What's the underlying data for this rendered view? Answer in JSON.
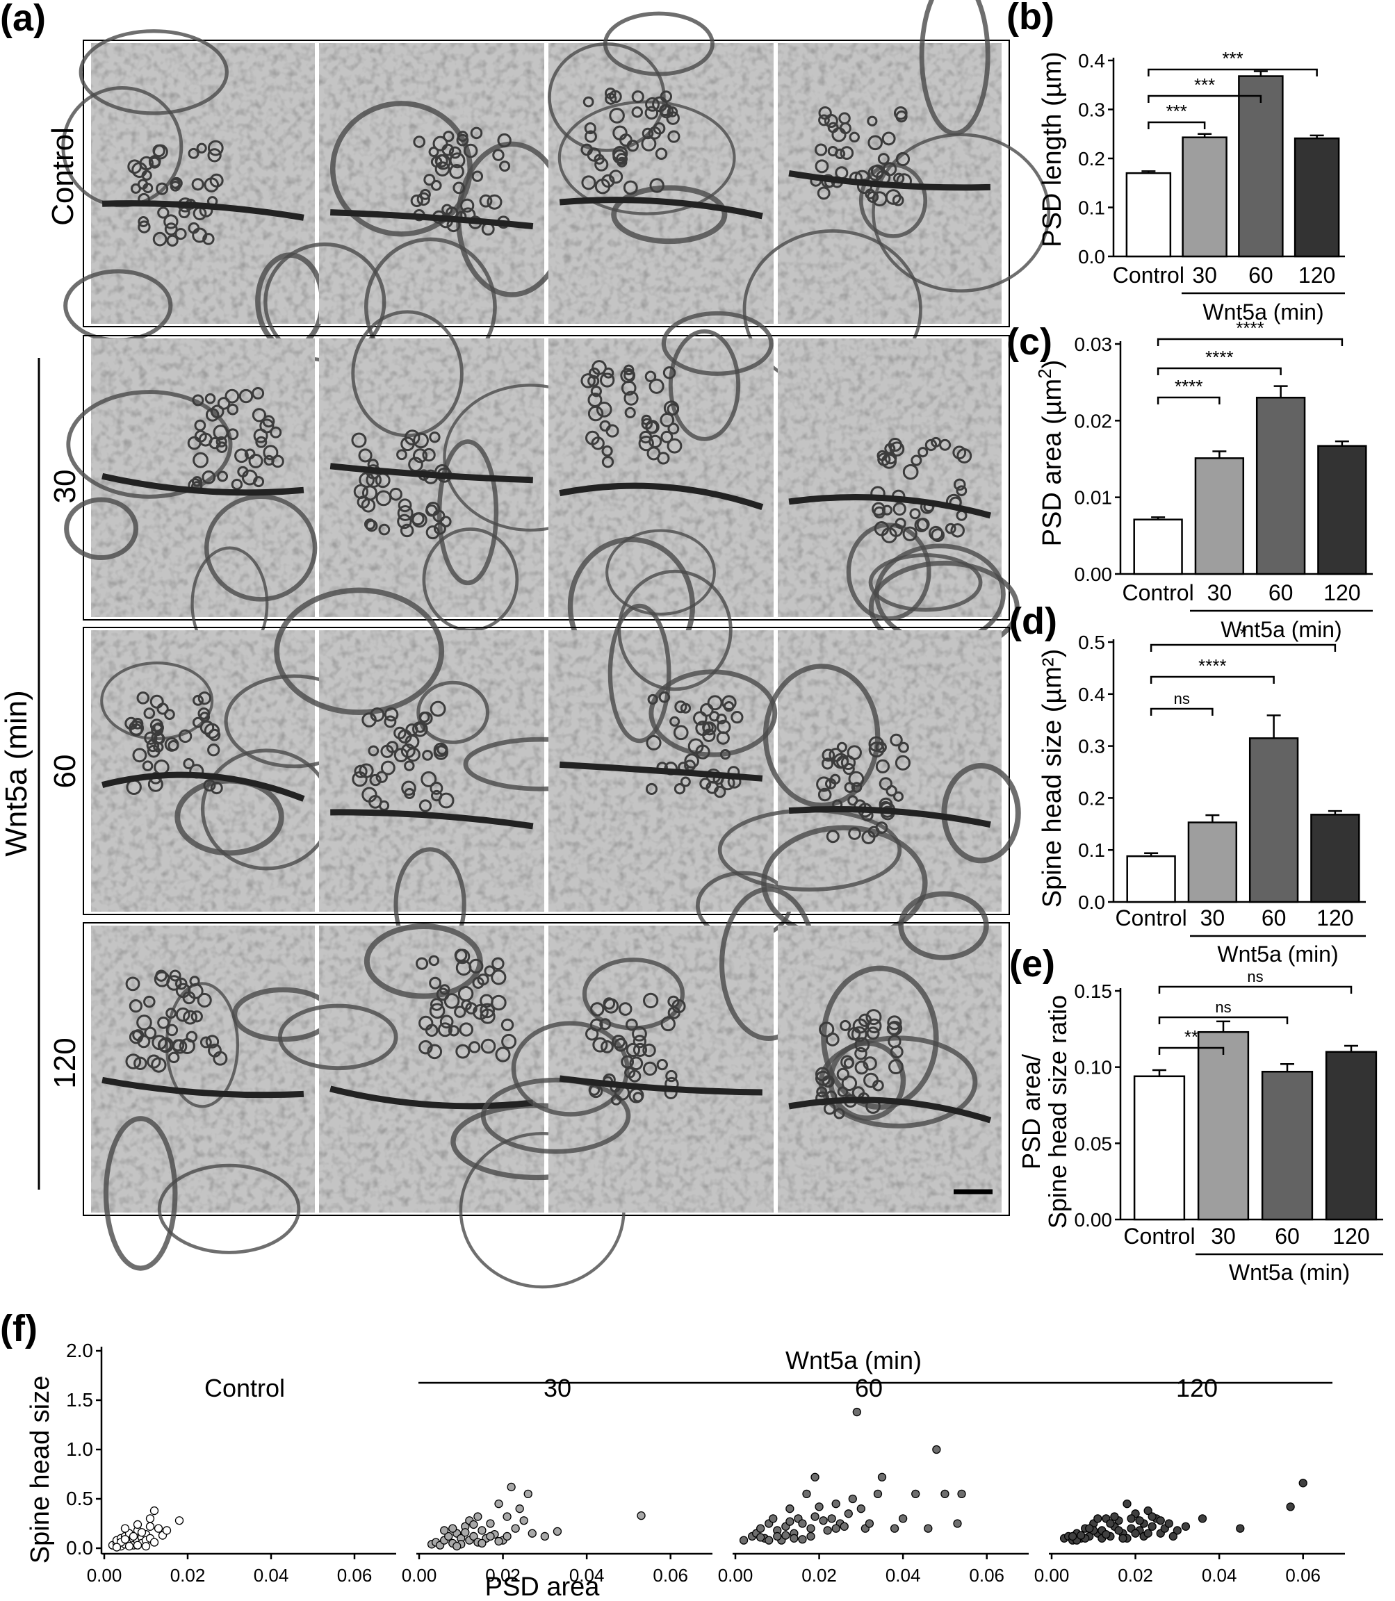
{
  "panels": {
    "a": "(a)",
    "b": "(b)",
    "c": "(c)",
    "d": "(d)",
    "e": "(e)",
    "f": "(f)"
  },
  "em": {
    "row_labels": [
      "Control",
      "30",
      "60",
      "120"
    ],
    "group_label": "Wnt5a (min)"
  },
  "chart_data": [
    {
      "id": "b",
      "type": "bar",
      "categories": [
        "Control",
        "30",
        "60",
        "120"
      ],
      "values": [
        0.17,
        0.243,
        0.368,
        0.241
      ],
      "errors": [
        0.004,
        0.007,
        0.01,
        0.006
      ],
      "ylabel": "PSD length (µm)",
      "ylim": [
        0,
        0.4
      ],
      "yticks": [
        0.0,
        0.1,
        0.2,
        0.3,
        0.4
      ],
      "ytick_labels": [
        "0.0",
        "0.1",
        "0.2",
        "0.3",
        "0.4"
      ],
      "group_label": "Wnt5a (min)",
      "colors": [
        "#ffffff",
        "#9e9e9e",
        "#636363",
        "#333333"
      ],
      "significance": [
        {
          "from": 0,
          "to": 1,
          "label": "***"
        },
        {
          "from": 0,
          "to": 2,
          "label": "***"
        },
        {
          "from": 0,
          "to": 3,
          "label": "***"
        }
      ]
    },
    {
      "id": "c",
      "type": "bar",
      "categories": [
        "Control",
        "30",
        "60",
        "120"
      ],
      "values": [
        0.0071,
        0.0151,
        0.023,
        0.0167
      ],
      "errors": [
        0.0003,
        0.0009,
        0.0015,
        0.0006
      ],
      "ylabel_parts": [
        "PSD area (µm",
        "2",
        ")"
      ],
      "ylim": [
        0,
        0.03
      ],
      "yticks": [
        0.0,
        0.01,
        0.02,
        0.03
      ],
      "ytick_labels": [
        "0.00",
        "0.01",
        "0.02",
        "0.03"
      ],
      "group_label": "Wnt5a (min)",
      "colors": [
        "#ffffff",
        "#9e9e9e",
        "#636363",
        "#333333"
      ],
      "significance": [
        {
          "from": 0,
          "to": 1,
          "label": "****"
        },
        {
          "from": 0,
          "to": 2,
          "label": "****"
        },
        {
          "from": 0,
          "to": 3,
          "label": "****"
        }
      ]
    },
    {
      "id": "d",
      "type": "bar",
      "categories": [
        "Control",
        "30",
        "60",
        "120"
      ],
      "values": [
        0.088,
        0.153,
        0.315,
        0.168
      ],
      "errors": [
        0.006,
        0.014,
        0.044,
        0.007
      ],
      "ylabel": "Spine head size (µm²)",
      "ylim": [
        0,
        0.5
      ],
      "yticks": [
        0.0,
        0.1,
        0.2,
        0.3,
        0.4,
        0.5
      ],
      "ytick_labels": [
        "0.0",
        "0.1",
        "0.2",
        "0.3",
        "0.4",
        "0.5"
      ],
      "group_label": "Wnt5a (min)",
      "colors": [
        "#ffffff",
        "#9e9e9e",
        "#636363",
        "#333333"
      ],
      "significance": [
        {
          "from": 0,
          "to": 1,
          "label": "ns"
        },
        {
          "from": 0,
          "to": 2,
          "label": "****"
        },
        {
          "from": 0,
          "to": 3,
          "label": "*"
        }
      ]
    },
    {
      "id": "e",
      "type": "bar",
      "categories": [
        "Control",
        "30",
        "60",
        "120"
      ],
      "values": [
        0.094,
        0.123,
        0.097,
        0.11
      ],
      "errors": [
        0.004,
        0.007,
        0.005,
        0.004
      ],
      "ylabel_lines": [
        "PSD area/",
        "Spine head size ratio"
      ],
      "ylim": [
        0,
        0.15
      ],
      "yticks": [
        0.0,
        0.05,
        0.1,
        0.15
      ],
      "ytick_labels": [
        "0.00",
        "0.05",
        "0.10",
        "0.15"
      ],
      "group_label": "Wnt5a (min)",
      "colors": [
        "#ffffff",
        "#9e9e9e",
        "#636363",
        "#333333"
      ],
      "significance": [
        {
          "from": 0,
          "to": 1,
          "label": "**"
        },
        {
          "from": 0,
          "to": 2,
          "label": "ns"
        },
        {
          "from": 0,
          "to": 3,
          "label": "ns"
        }
      ]
    },
    {
      "id": "f",
      "type": "scatter",
      "title": "Wnt5a (min)",
      "xlabel": "PSD area",
      "ylabel": "Spine head size",
      "xlim": [
        0,
        0.07
      ],
      "ylim": [
        0,
        2.0
      ],
      "xticks": [
        0.0,
        0.02,
        0.04,
        0.06
      ],
      "xtick_labels": [
        "0.00",
        "0.02",
        "0.04",
        "0.06"
      ],
      "yticks": [
        0.0,
        0.5,
        1.0,
        1.5,
        2.0
      ],
      "ytick_labels": [
        "0.0",
        "0.5",
        "1.0",
        "1.5",
        "2.0"
      ],
      "series": [
        {
          "name": "Control",
          "color": "#ffffff",
          "points": [
            [
              0.002,
              0.03
            ],
            [
              0.003,
              0.05
            ],
            [
              0.003,
              0.08
            ],
            [
              0.004,
              0.02
            ],
            [
              0.004,
              0.1
            ],
            [
              0.005,
              0.04
            ],
            [
              0.005,
              0.12
            ],
            [
              0.006,
              0.06
            ],
            [
              0.006,
              0.15
            ],
            [
              0.007,
              0.09
            ],
            [
              0.007,
              0.03
            ],
            [
              0.008,
              0.18
            ],
            [
              0.008,
              0.07
            ],
            [
              0.009,
              0.11
            ],
            [
              0.009,
              0.05
            ],
            [
              0.01,
              0.14
            ],
            [
              0.01,
              0.08
            ],
            [
              0.011,
              0.22
            ],
            [
              0.011,
              0.1
            ],
            [
              0.012,
              0.38
            ],
            [
              0.012,
              0.06
            ],
            [
              0.013,
              0.2
            ],
            [
              0.014,
              0.13
            ],
            [
              0.015,
              0.18
            ],
            [
              0.018,
              0.28
            ],
            [
              0.005,
              0.2
            ],
            [
              0.007,
              0.12
            ],
            [
              0.009,
              0.16
            ],
            [
              0.004,
              0.06
            ],
            [
              0.006,
              0.02
            ],
            [
              0.008,
              0.03
            ],
            [
              0.01,
              0.02
            ],
            [
              0.003,
              0.01
            ],
            [
              0.005,
              0.09
            ],
            [
              0.008,
              0.24
            ],
            [
              0.011,
              0.3
            ]
          ]
        },
        {
          "name": "30",
          "color": "#a8a8a8",
          "points": [
            [
              0.003,
              0.04
            ],
            [
              0.004,
              0.06
            ],
            [
              0.005,
              0.03
            ],
            [
              0.006,
              0.08
            ],
            [
              0.007,
              0.12
            ],
            [
              0.008,
              0.05
            ],
            [
              0.009,
              0.15
            ],
            [
              0.01,
              0.1
            ],
            [
              0.011,
              0.22
            ],
            [
              0.012,
              0.28
            ],
            [
              0.012,
              0.08
            ],
            [
              0.013,
              0.12
            ],
            [
              0.014,
              0.06
            ],
            [
              0.015,
              0.18
            ],
            [
              0.016,
              0.1
            ],
            [
              0.017,
              0.25
            ],
            [
              0.018,
              0.14
            ],
            [
              0.019,
              0.45
            ],
            [
              0.02,
              0.08
            ],
            [
              0.021,
              0.32
            ],
            [
              0.022,
              0.62
            ],
            [
              0.023,
              0.2
            ],
            [
              0.024,
              0.4
            ],
            [
              0.025,
              0.28
            ],
            [
              0.026,
              0.55
            ],
            [
              0.027,
              0.15
            ],
            [
              0.03,
              0.12
            ],
            [
              0.033,
              0.17
            ],
            [
              0.053,
              0.33
            ],
            [
              0.008,
              0.2
            ],
            [
              0.01,
              0.04
            ],
            [
              0.011,
              0.16
            ],
            [
              0.013,
              0.24
            ],
            [
              0.015,
              0.05
            ],
            [
              0.017,
              0.12
            ],
            [
              0.006,
              0.18
            ],
            [
              0.009,
              0.02
            ],
            [
              0.014,
              0.32
            ],
            [
              0.019,
              0.07
            ],
            [
              0.021,
              0.12
            ]
          ]
        },
        {
          "name": "60",
          "color": "#6e6e6e",
          "points": [
            [
              0.002,
              0.08
            ],
            [
              0.004,
              0.12
            ],
            [
              0.005,
              0.15
            ],
            [
              0.006,
              0.2
            ],
            [
              0.007,
              0.1
            ],
            [
              0.008,
              0.25
            ],
            [
              0.009,
              0.3
            ],
            [
              0.01,
              0.18
            ],
            [
              0.011,
              0.08
            ],
            [
              0.012,
              0.22
            ],
            [
              0.013,
              0.4
            ],
            [
              0.014,
              0.15
            ],
            [
              0.015,
              0.3
            ],
            [
              0.016,
              0.25
            ],
            [
              0.017,
              0.55
            ],
            [
              0.018,
              0.2
            ],
            [
              0.019,
              0.32
            ],
            [
              0.02,
              0.42
            ],
            [
              0.021,
              0.28
            ],
            [
              0.022,
              0.18
            ],
            [
              0.023,
              0.3
            ],
            [
              0.024,
              0.45
            ],
            [
              0.025,
              0.25
            ],
            [
              0.026,
              0.22
            ],
            [
              0.027,
              0.35
            ],
            [
              0.028,
              0.5
            ],
            [
              0.029,
              1.38
            ],
            [
              0.03,
              0.4
            ],
            [
              0.031,
              0.2
            ],
            [
              0.032,
              0.25
            ],
            [
              0.034,
              0.55
            ],
            [
              0.035,
              0.72
            ],
            [
              0.038,
              0.2
            ],
            [
              0.04,
              0.3
            ],
            [
              0.043,
              0.55
            ],
            [
              0.046,
              0.2
            ],
            [
              0.048,
              1.0
            ],
            [
              0.05,
              0.55
            ],
            [
              0.053,
              0.25
            ],
            [
              0.054,
              0.55
            ],
            [
              0.01,
              0.12
            ],
            [
              0.012,
              0.13
            ],
            [
              0.014,
              0.1
            ],
            [
              0.016,
              0.09
            ],
            [
              0.018,
              0.12
            ],
            [
              0.019,
              0.72
            ],
            [
              0.024,
              0.2
            ],
            [
              0.013,
              0.27
            ],
            [
              0.008,
              0.08
            ],
            [
              0.006,
              0.11
            ]
          ]
        },
        {
          "name": "120",
          "color": "#404040",
          "points": [
            [
              0.003,
              0.1
            ],
            [
              0.004,
              0.12
            ],
            [
              0.005,
              0.08
            ],
            [
              0.006,
              0.15
            ],
            [
              0.007,
              0.1
            ],
            [
              0.008,
              0.2
            ],
            [
              0.009,
              0.12
            ],
            [
              0.01,
              0.25
            ],
            [
              0.011,
              0.15
            ],
            [
              0.012,
              0.18
            ],
            [
              0.013,
              0.3
            ],
            [
              0.014,
              0.12
            ],
            [
              0.015,
              0.22
            ],
            [
              0.016,
              0.28
            ],
            [
              0.017,
              0.15
            ],
            [
              0.018,
              0.45
            ],
            [
              0.019,
              0.2
            ],
            [
              0.02,
              0.35
            ],
            [
              0.021,
              0.18
            ],
            [
              0.022,
              0.25
            ],
            [
              0.023,
              0.38
            ],
            [
              0.024,
              0.22
            ],
            [
              0.025,
              0.3
            ],
            [
              0.026,
              0.15
            ],
            [
              0.027,
              0.2
            ],
            [
              0.028,
              0.25
            ],
            [
              0.03,
              0.18
            ],
            [
              0.032,
              0.22
            ],
            [
              0.036,
              0.3
            ],
            [
              0.045,
              0.2
            ],
            [
              0.057,
              0.42
            ],
            [
              0.06,
              0.66
            ],
            [
              0.008,
              0.1
            ],
            [
              0.01,
              0.18
            ],
            [
              0.012,
              0.1
            ],
            [
              0.014,
              0.25
            ],
            [
              0.016,
              0.18
            ],
            [
              0.018,
              0.1
            ],
            [
              0.02,
              0.15
            ],
            [
              0.022,
              0.12
            ],
            [
              0.024,
              0.32
            ],
            [
              0.006,
              0.08
            ],
            [
              0.011,
              0.3
            ],
            [
              0.013,
              0.14
            ],
            [
              0.015,
              0.32
            ],
            [
              0.017,
              0.1
            ],
            [
              0.019,
              0.3
            ],
            [
              0.021,
              0.28
            ],
            [
              0.023,
              0.15
            ],
            [
              0.009,
              0.2
            ],
            [
              0.007,
              0.13
            ],
            [
              0.005,
              0.12
            ],
            [
              0.026,
              0.28
            ],
            [
              0.029,
              0.12
            ]
          ]
        }
      ]
    }
  ]
}
